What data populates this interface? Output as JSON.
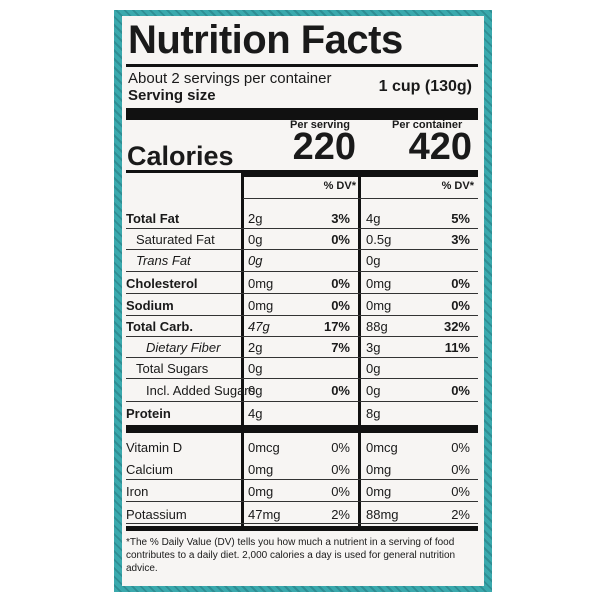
{
  "title": "Nutrition Facts",
  "servings": "About 2 servings per container",
  "serving_size_label": "Serving size",
  "serving_size_value": "1 cup (130g)",
  "per_serving": "Per serving",
  "per_container": "Per container",
  "calories_label": "Calories",
  "calories_serving": "220",
  "calories_container": "420",
  "dv_header_serving": "% DV*",
  "dv_header_container": "% DV*",
  "rows": [
    {
      "name": "Total Fat",
      "serving": "2g",
      "serving_dv": "3%",
      "container": "4g",
      "container_dv": "5%"
    },
    {
      "name": "Saturated Fat",
      "serving": "0g",
      "serving_dv": "0%",
      "container": "0.5g",
      "container_dv": "3%"
    },
    {
      "name": "Trans Fat",
      "serving": "0g",
      "container": "0g"
    },
    {
      "name": "Cholesterol",
      "serving": "0mg",
      "serving_dv": "0%",
      "container": "0mg",
      "container_dv": "0%"
    },
    {
      "name": "Sodium",
      "serving": "0mg",
      "serving_dv": "0%",
      "container": "0mg",
      "container_dv": "0%"
    },
    {
      "name": "Total Carb.",
      "serving": "47g",
      "serving_dv": "17%",
      "container": "88g",
      "container_dv": "32%"
    },
    {
      "name": "Dietary Fiber",
      "serving": "2g",
      "serving_dv": "7%",
      "container": "3g",
      "container_dv": "11%"
    },
    {
      "name": "Total Sugars",
      "serving": "0g",
      "container": "0g"
    },
    {
      "name": "Incl. Added Sugars",
      "serving": "0g",
      "serving_dv": "0%",
      "container": "0g",
      "container_dv": "0%"
    },
    {
      "name": "Protein",
      "serving": "4g",
      "container": "8g"
    },
    {
      "name": "Vitamin D",
      "serving": "0mcg",
      "serving_dv": "0%",
      "container": "0mcg",
      "container_dv": "0%"
    },
    {
      "name": "Calcium",
      "serving": "0mg",
      "serving_dv": "0%",
      "container": "0mg",
      "container_dv": "0%"
    },
    {
      "name": "Iron",
      "serving": "0mg",
      "serving_dv": "0%",
      "container": "0mg",
      "container_dv": "0%"
    },
    {
      "name": "Potassium",
      "serving": "47mg",
      "serving_dv": "2%",
      "container": "88mg",
      "container_dv": "2%"
    }
  ],
  "footnote": "*The % Daily Value (DV) tells you how much a nutrient in a serving of food contributes to a daily diet. 2,000 calories a day is used for general nutrition advice."
}
